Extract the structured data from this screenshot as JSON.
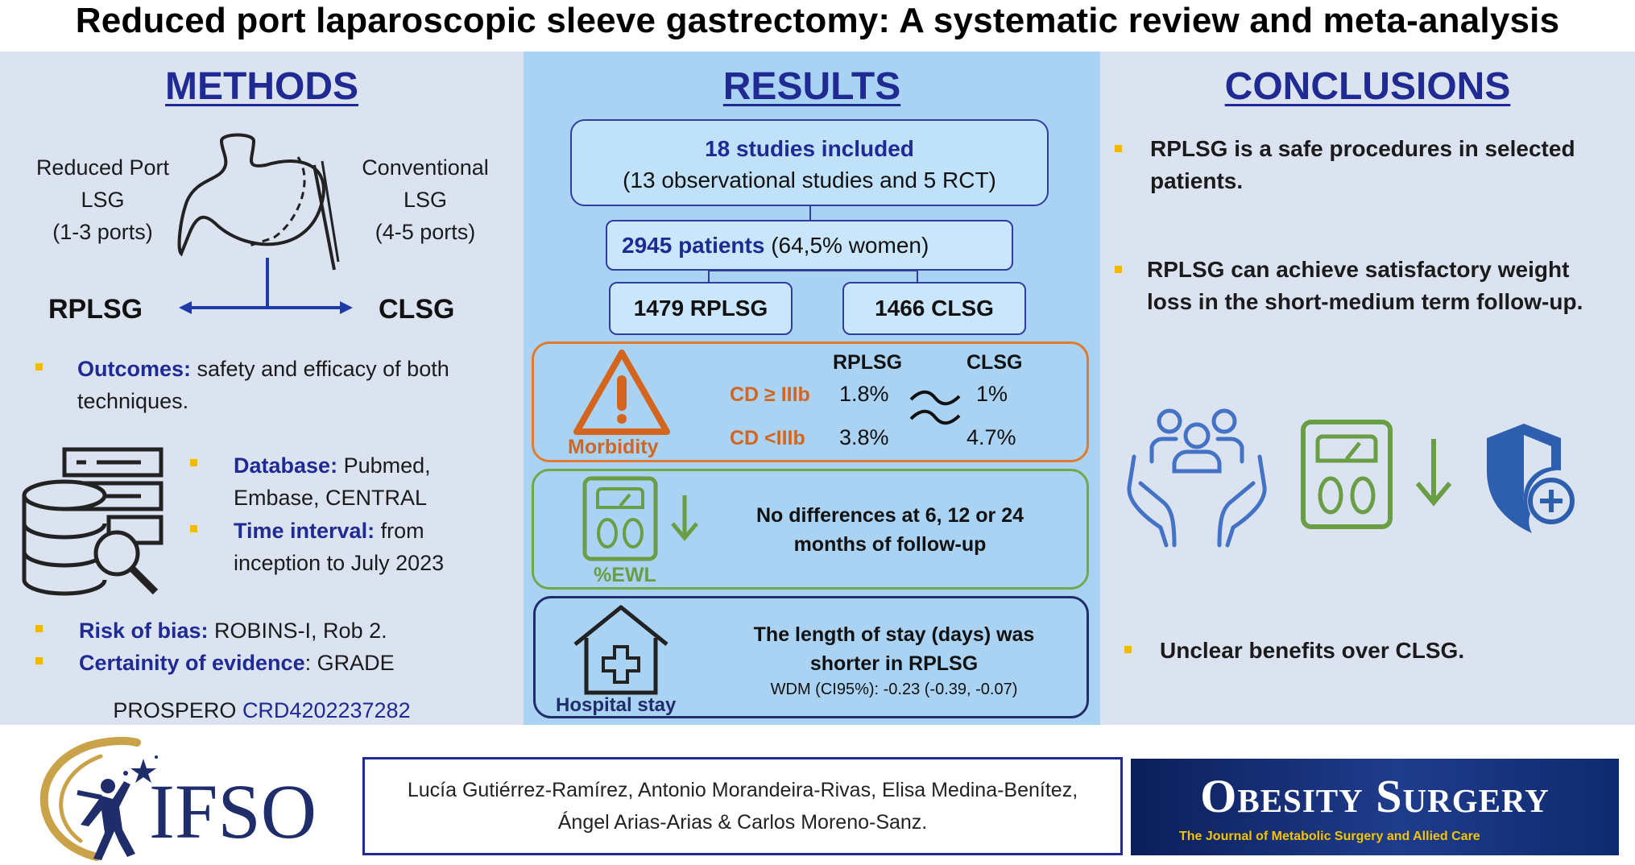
{
  "title": "Reduced port laparoscopic sleeve gastrectomy: A systematic review and meta-analysis",
  "methods": {
    "heading": "METHODS",
    "left_label": [
      "Reduced Port",
      "LSG",
      "(1-3 ports)"
    ],
    "right_label": [
      "Conventional",
      "LSG",
      "(4-5 ports)"
    ],
    "left_abbr": "RPLSG",
    "right_abbr": "CLSG",
    "outcomes_label": "Outcomes:",
    "outcomes_text": " safety and efficacy of both",
    "outcomes_text2": "techniques.",
    "database_label": "Database:",
    "database_text": " Pubmed,",
    "database_text2": "Embase, CENTRAL",
    "time_label": "Time interval:",
    "time_text": " from",
    "time_text2": "inception to July 2023",
    "bias_label": "Risk of bias:",
    "bias_text": " ROBINS-I, Rob 2.",
    "certainty_label": "Certainity of evidence",
    "certainty_text": ": GRADE",
    "prospero_label": "PROSPERO ",
    "prospero_id": "CRD4202237282"
  },
  "results": {
    "heading": "RESULTS",
    "studies_bold": "18 studies included",
    "studies_detail": "(13 observational studies and 5 RCT)",
    "patients_bold": "2945 patients",
    "patients_detail": " (64,5% women)",
    "rplsg_count": "1479 RPLSG",
    "clsg_count": "1466 CLSG",
    "morbidity": {
      "label": "Morbidity",
      "col1": "RPLSG",
      "col2": "CLSG",
      "row1_label": "CD ≥ IIIb",
      "row1_v1": "1.8%",
      "row1_v2": "1%",
      "row2_label": "CD <IIIb",
      "row2_v1": "3.8%",
      "row2_v2": "4.7%"
    },
    "ewl": {
      "label": "%EWL",
      "text1": "No differences at 6, 12 or 24",
      "text2": "months of follow-up"
    },
    "stay": {
      "label": "Hospital stay",
      "text1": "The length of stay (days) was",
      "text2": "shorter in RPLSG",
      "wdm": "WDM (CI95%): -0.23 (-0.39, -0.07)"
    }
  },
  "conclusions": {
    "heading": "CONCLUSIONS",
    "c1_line1": "RPLSG is a safe procedures in selected",
    "c1_line2": "patients.",
    "c2_line1": "RPLSG can achieve satisfactory weight",
    "c2_line2": "loss in the short-medium  term follow-up.",
    "c3": "Unclear benefits over CLSG."
  },
  "footer": {
    "ifso": "IFSO",
    "authors_line1": "Lucía Gutiérrez-Ramírez,  Antonio Morandeira-Rivas, Elisa Medina-Benítez,",
    "authors_line2": "Ángel Arias-Arias & Carlos Moreno-Sanz.",
    "journal_title": "Obesity Surgery",
    "journal_subtitle": "The Journal of Metabolic Surgery and Allied Care"
  },
  "colors": {
    "heading_blue": "#1f2a93",
    "bullet_yellow": "#f5b800",
    "orange": "#e07b2d",
    "green": "#72a84d",
    "icon_blue": "#4472c4"
  }
}
